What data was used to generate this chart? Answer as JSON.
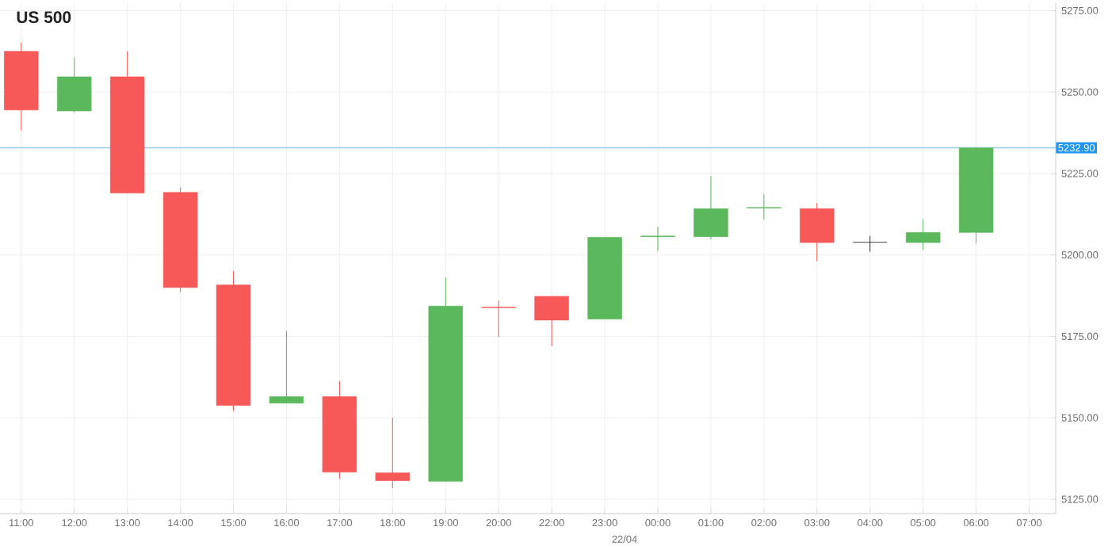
{
  "chart_data": {
    "type": "candlestick",
    "title": "US 500",
    "categories": [
      "11:00",
      "12:00",
      "13:00",
      "14:00",
      "15:00",
      "16:00",
      "17:00",
      "18:00",
      "19:00",
      "20:00",
      "22:00",
      "23:00",
      "00:00",
      "01:00",
      "02:00",
      "03:00",
      "04:00",
      "05:00",
      "06:00",
      "07:00"
    ],
    "ohlc": [
      [
        5262.5,
        5265.2,
        5238.2,
        5244.5
      ],
      [
        5244.2,
        5260.7,
        5243.7,
        5254.7
      ],
      [
        5254.7,
        5262.5,
        5219.0,
        5219.0
      ],
      [
        5219.2,
        5220.7,
        5188.6,
        5190.0
      ],
      [
        5190.8,
        5195.0,
        5152.1,
        5153.8
      ],
      [
        5154.5,
        5176.6,
        5154.5,
        5156.5
      ],
      [
        5156.5,
        5161.3,
        5131.2,
        5133.3
      ],
      [
        5133.1,
        5150.0,
        5128.4,
        5130.7
      ],
      [
        5130.5,
        5193.1,
        5130.5,
        5184.3
      ],
      [
        5184.0,
        5186.0,
        5174.8,
        5183.8
      ],
      [
        5187.3,
        5187.3,
        5172.0,
        5180.0
      ],
      [
        5180.3,
        5205.4,
        5180.3,
        5205.4
      ],
      [
        5205.6,
        5208.7,
        5201.2,
        5205.8
      ],
      [
        5205.6,
        5224.2,
        5204.8,
        5214.2
      ],
      [
        5214.4,
        5218.7,
        5210.9,
        5214.6
      ],
      [
        5214.2,
        5216.0,
        5198.1,
        5203.8
      ],
      [
        5203.9,
        5205.9,
        5201.0,
        5203.9
      ],
      [
        5203.8,
        5211.0,
        5201.5,
        5206.9
      ],
      [
        5206.9,
        5233.2,
        5203.5,
        5232.9
      ],
      null
    ],
    "colors": [
      "#f75858",
      "#5cb85c",
      "#f75858",
      "#f75858",
      "#f75858",
      "#5cb85c",
      "#f75858",
      "#f75858",
      "#5cb85c",
      "#f75858",
      "#f75858",
      "#5cb85c",
      "#5cb85c",
      "#5cb85c",
      "#5cb85c",
      "#f75858",
      "#333333",
      "#5cb85c",
      "#5cb85c",
      null
    ],
    "ylim": [
      5120.6,
      5277.3
    ],
    "yticks": [
      {
        "value": 5125,
        "label": "5125.00"
      },
      {
        "value": 5150,
        "label": "5150.00"
      },
      {
        "value": 5175,
        "label": "5175.00"
      },
      {
        "value": 5200,
        "label": "5200.00"
      },
      {
        "value": 5225,
        "label": "5225.00"
      },
      {
        "value": 5250,
        "label": "5250.00"
      },
      {
        "value": 5275,
        "label": "5275.00"
      }
    ],
    "grid": true,
    "ref_lines": [
      {
        "axis": "y",
        "value": 5232.9,
        "label": "5232.90",
        "color": "#8ecaf2"
      }
    ],
    "annotations": [
      "22/04"
    ]
  }
}
